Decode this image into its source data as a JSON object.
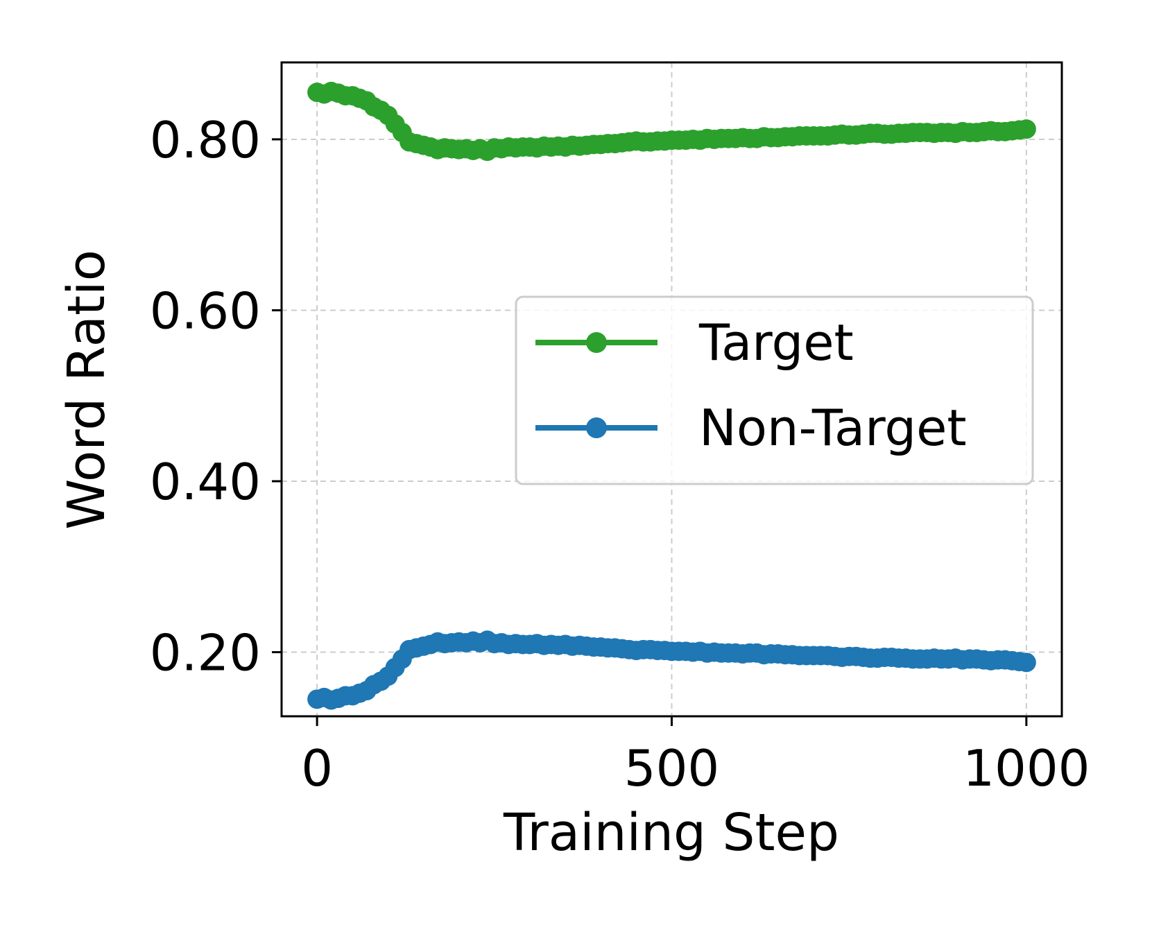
{
  "chart_data": {
    "type": "line",
    "title": "",
    "xlabel": "Training Step",
    "ylabel": "Word Ratio",
    "xlim": [
      -50,
      1050
    ],
    "ylim": [
      0.125,
      0.89
    ],
    "xticks": [
      0,
      500,
      1000
    ],
    "xtick_labels": [
      "0",
      "500",
      "1000"
    ],
    "yticks": [
      0.2,
      0.4,
      0.6,
      0.8
    ],
    "ytick_labels": [
      "0.20",
      "0.40",
      "0.60",
      "0.80"
    ],
    "grid": true,
    "legend_position": "center-right",
    "x": [
      0,
      10,
      20,
      30,
      40,
      50,
      60,
      70,
      80,
      90,
      100,
      110,
      120,
      130,
      140,
      150,
      160,
      170,
      180,
      190,
      200,
      210,
      220,
      230,
      240,
      250,
      260,
      270,
      280,
      290,
      300,
      310,
      320,
      330,
      340,
      350,
      360,
      370,
      380,
      390,
      400,
      410,
      420,
      430,
      440,
      450,
      460,
      470,
      480,
      490,
      500,
      510,
      520,
      530,
      540,
      550,
      560,
      570,
      580,
      590,
      600,
      610,
      620,
      630,
      640,
      650,
      660,
      670,
      680,
      690,
      700,
      710,
      720,
      730,
      740,
      750,
      760,
      770,
      780,
      790,
      800,
      810,
      820,
      830,
      840,
      850,
      860,
      870,
      880,
      890,
      900,
      910,
      920,
      930,
      940,
      950,
      960,
      970,
      980,
      990,
      1000
    ],
    "series": [
      {
        "name": "Target",
        "color": "#2ca02c",
        "values": [
          0.855,
          0.853,
          0.856,
          0.854,
          0.851,
          0.851,
          0.848,
          0.845,
          0.838,
          0.834,
          0.828,
          0.818,
          0.808,
          0.797,
          0.795,
          0.793,
          0.791,
          0.788,
          0.79,
          0.789,
          0.788,
          0.789,
          0.787,
          0.789,
          0.786,
          0.79,
          0.789,
          0.791,
          0.79,
          0.791,
          0.791,
          0.79,
          0.792,
          0.791,
          0.792,
          0.791,
          0.793,
          0.792,
          0.793,
          0.794,
          0.794,
          0.795,
          0.795,
          0.796,
          0.797,
          0.798,
          0.797,
          0.797,
          0.798,
          0.798,
          0.799,
          0.799,
          0.799,
          0.8,
          0.799,
          0.801,
          0.8,
          0.801,
          0.801,
          0.801,
          0.802,
          0.801,
          0.801,
          0.803,
          0.802,
          0.802,
          0.803,
          0.803,
          0.804,
          0.804,
          0.804,
          0.804,
          0.804,
          0.805,
          0.806,
          0.805,
          0.805,
          0.806,
          0.807,
          0.807,
          0.806,
          0.806,
          0.807,
          0.807,
          0.808,
          0.808,
          0.808,
          0.807,
          0.808,
          0.808,
          0.807,
          0.809,
          0.808,
          0.808,
          0.809,
          0.81,
          0.809,
          0.809,
          0.81,
          0.811,
          0.812
        ]
      },
      {
        "name": "Non-Target",
        "color": "#1f77b4",
        "values": [
          0.145,
          0.147,
          0.144,
          0.146,
          0.149,
          0.149,
          0.152,
          0.155,
          0.162,
          0.166,
          0.172,
          0.182,
          0.192,
          0.203,
          0.205,
          0.207,
          0.209,
          0.212,
          0.21,
          0.211,
          0.212,
          0.211,
          0.213,
          0.211,
          0.214,
          0.21,
          0.211,
          0.209,
          0.21,
          0.209,
          0.209,
          0.21,
          0.208,
          0.209,
          0.208,
          0.209,
          0.207,
          0.208,
          0.207,
          0.206,
          0.206,
          0.205,
          0.205,
          0.204,
          0.203,
          0.202,
          0.203,
          0.203,
          0.202,
          0.202,
          0.201,
          0.201,
          0.201,
          0.2,
          0.201,
          0.199,
          0.2,
          0.199,
          0.199,
          0.199,
          0.198,
          0.199,
          0.199,
          0.197,
          0.198,
          0.198,
          0.197,
          0.197,
          0.196,
          0.196,
          0.196,
          0.196,
          0.196,
          0.195,
          0.194,
          0.195,
          0.195,
          0.194,
          0.193,
          0.193,
          0.194,
          0.194,
          0.193,
          0.193,
          0.192,
          0.192,
          0.192,
          0.193,
          0.192,
          0.192,
          0.193,
          0.191,
          0.192,
          0.192,
          0.191,
          0.19,
          0.191,
          0.191,
          0.19,
          0.189,
          0.188
        ]
      }
    ]
  }
}
